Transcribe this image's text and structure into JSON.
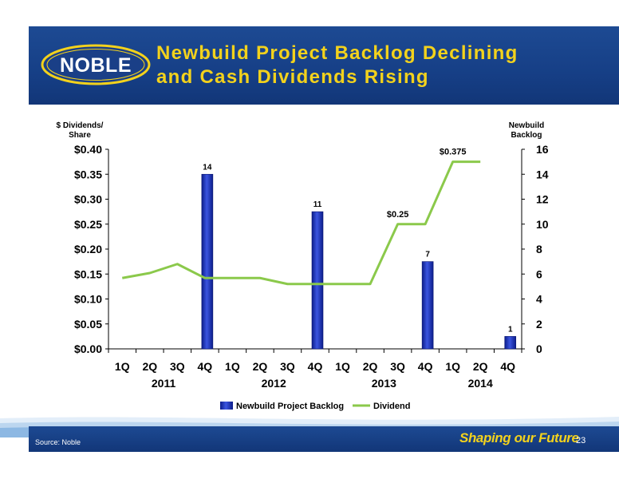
{
  "logo": {
    "text": "NOBLE"
  },
  "title": {
    "line1": "Newbuild Project Backlog Declining",
    "line2": "and Cash Dividends Rising"
  },
  "footer": {
    "source": "Source: Noble",
    "tagline": "Shaping our Future",
    "page": "23"
  },
  "colors": {
    "bar": "#1f38c4",
    "line": "#8bc94b",
    "header": "#1a4590",
    "title": "#f3d21c"
  },
  "chart_data": {
    "type": "bar+line",
    "left_axis_label": [
      "$ Dividends/",
      "Share"
    ],
    "right_axis_label": [
      "Newbuild",
      "Backlog"
    ],
    "left_ticks": [
      "$0.00",
      "$0.05",
      "$0.10",
      "$0.15",
      "$0.20",
      "$0.25",
      "$0.30",
      "$0.35",
      "$0.40"
    ],
    "right_ticks": [
      "0",
      "2",
      "4",
      "6",
      "8",
      "10",
      "12",
      "14",
      "16"
    ],
    "ylim_left": [
      0,
      0.4
    ],
    "ylim_right": [
      0,
      16
    ],
    "quarters": [
      "1Q",
      "2Q",
      "3Q",
      "4Q",
      "1Q",
      "2Q",
      "3Q",
      "4Q",
      "1Q",
      "2Q",
      "3Q",
      "4Q",
      "1Q",
      "2Q",
      "4Q"
    ],
    "years": [
      "2011",
      "2012",
      "2013",
      "2014"
    ],
    "series": [
      {
        "name": "Newbuild Project Backlog",
        "type": "bar",
        "axis": "right",
        "values": [
          null,
          null,
          null,
          14,
          null,
          null,
          null,
          11,
          null,
          null,
          null,
          7,
          null,
          null,
          1
        ],
        "labels": [
          "",
          "",
          "",
          "14",
          "",
          "",
          "",
          "11",
          "",
          "",
          "",
          "7",
          "",
          "",
          "1"
        ]
      },
      {
        "name": "Dividend",
        "type": "line",
        "axis": "left",
        "values": [
          0.142,
          0.152,
          0.17,
          0.142,
          0.142,
          0.142,
          0.13,
          0.13,
          0.13,
          0.13,
          0.25,
          0.25,
          0.375,
          0.375,
          null
        ],
        "labels": [
          "",
          "",
          "",
          "",
          "",
          "",
          "",
          "",
          "",
          "",
          "$0.25",
          "",
          "$0.375",
          "",
          ""
        ]
      }
    ],
    "legend": {
      "position": "bottom"
    }
  }
}
